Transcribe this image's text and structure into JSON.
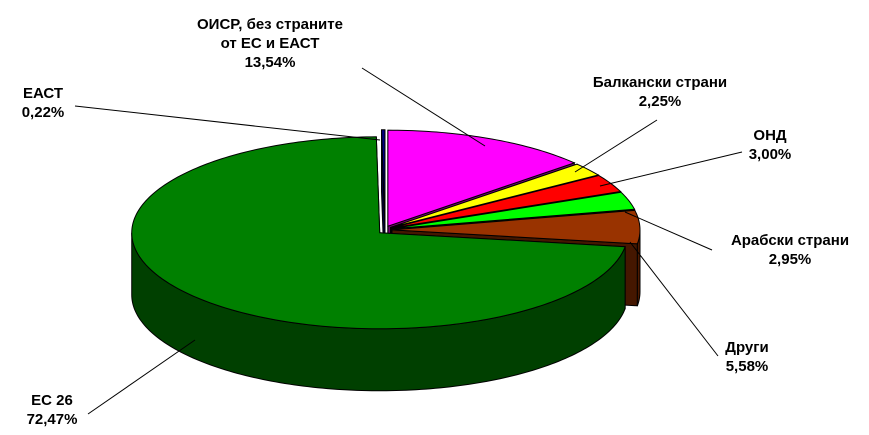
{
  "chart_data": {
    "type": "pie3d",
    "categories": [
      "ЕАСТ",
      "ОИСР, без страните от ЕС и ЕАСТ",
      "Балкански страни",
      "ОНД",
      "Арабски страни",
      "Други",
      "ЕС 26"
    ],
    "values": [
      0.22,
      13.54,
      2.25,
      3.0,
      2.95,
      5.58,
      72.47
    ],
    "value_labels": [
      "0,22%",
      "13,54%",
      "2,25%",
      "3,00%",
      "2,95%",
      "5,58%",
      "72,47%"
    ],
    "colors": [
      "#000080",
      "#ff00ff",
      "#ffff00",
      "#ff0000",
      "#00ff00",
      "#993300",
      "#008000"
    ]
  }
}
